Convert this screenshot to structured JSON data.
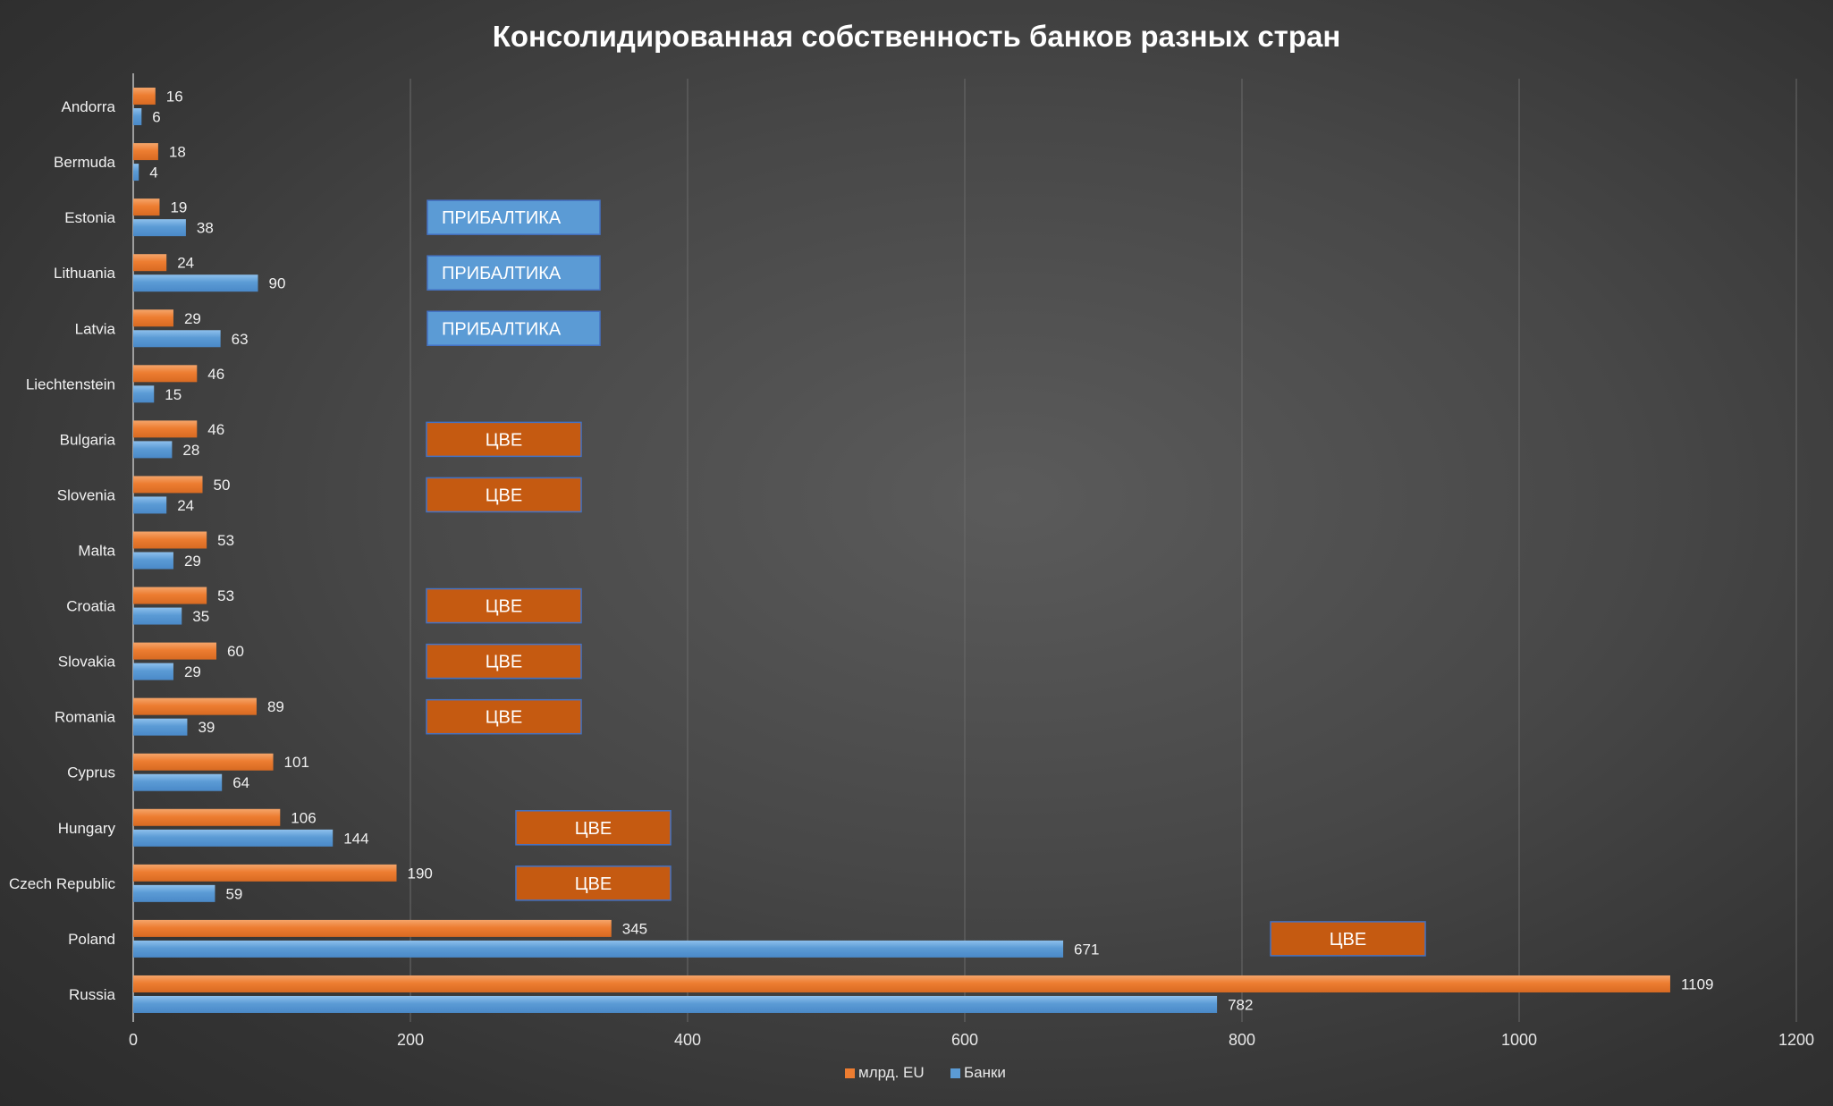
{
  "chart_data": {
    "type": "bar",
    "orientation": "horizontal",
    "title": "Консолидированная собственность банков разных стран",
    "categories": [
      "Andorra",
      "Bermuda",
      "Estonia",
      "Lithuania",
      "Latvia",
      "Liechtenstein",
      "Bulgaria",
      "Slovenia",
      "Malta",
      "Croatia",
      "Slovakia",
      "Romania",
      "Cyprus",
      "Hungary",
      "Czech Republic",
      "Poland",
      "Russia"
    ],
    "series": [
      {
        "name": "млрд. EU",
        "color": "#ed7d31",
        "values": [
          16,
          18,
          19,
          24,
          29,
          46,
          46,
          50,
          53,
          53,
          60,
          89,
          101,
          106,
          190,
          345,
          1109
        ]
      },
      {
        "name": "Банки",
        "color": "#5b9bd5",
        "values": [
          6,
          4,
          38,
          90,
          63,
          15,
          28,
          24,
          29,
          35,
          29,
          39,
          64,
          144,
          59,
          671,
          782
        ]
      }
    ],
    "xlim": [
      0,
      1200
    ],
    "xticks": [
      0,
      200,
      400,
      600,
      800,
      1000,
      1200
    ],
    "grid": true,
    "legend_position": "bottom",
    "annotations": [
      {
        "text": "ПРИБАЛТИКА",
        "category": "Estonia",
        "type": "baltic",
        "color": "#5b9bd5"
      },
      {
        "text": "ПРИБАЛТИКА",
        "category": "Lithuania",
        "type": "baltic",
        "color": "#5b9bd5"
      },
      {
        "text": "ПРИБАЛТИКА",
        "category": "Latvia",
        "type": "baltic",
        "color": "#5b9bd5"
      },
      {
        "text": "ЦВЕ",
        "category": "Bulgaria",
        "type": "cee",
        "color": "#c55a11"
      },
      {
        "text": "ЦВЕ",
        "category": "Slovenia",
        "type": "cee",
        "color": "#c55a11"
      },
      {
        "text": "ЦВЕ",
        "category": "Croatia",
        "type": "cee",
        "color": "#c55a11"
      },
      {
        "text": "ЦВЕ",
        "category": "Slovakia",
        "type": "cee",
        "color": "#c55a11"
      },
      {
        "text": "ЦВЕ",
        "category": "Romania",
        "type": "cee",
        "color": "#c55a11"
      },
      {
        "text": "ЦВЕ",
        "category": "Hungary",
        "type": "cee",
        "color": "#c55a11"
      },
      {
        "text": "ЦВЕ",
        "category": "Czech Republic",
        "type": "cee",
        "color": "#c55a11"
      },
      {
        "text": "ЦВЕ",
        "category": "Poland",
        "type": "cee",
        "color": "#c55a11"
      }
    ]
  }
}
